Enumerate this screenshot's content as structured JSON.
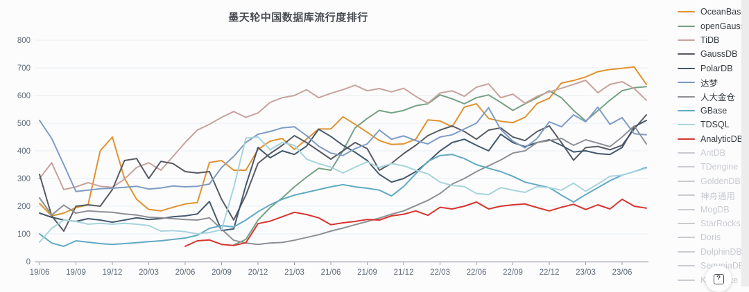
{
  "chart": {
    "title": "墨天轮中国数据库流行度排行",
    "help_icon_glyph": "?"
  },
  "chart_data": {
    "type": "line",
    "title": "墨天轮中国数据库流行度排行",
    "xlabel": "",
    "ylabel": "",
    "ylim": [
      0,
      800
    ],
    "y_ticks": [
      0,
      100,
      200,
      300,
      400,
      500,
      600,
      700,
      800
    ],
    "grid": "horizontal",
    "legend_position": "right",
    "x_unit": "month",
    "tick_every_n_points": 3,
    "x_tick_labels": [
      "19/06",
      "19/09",
      "19/12",
      "20/03",
      "20/06",
      "20/09",
      "20/12",
      "21/03",
      "21/06",
      "21/09",
      "21/12",
      "22/03",
      "22/06",
      "22/09",
      "22/12",
      "23/03",
      "23/06"
    ],
    "series": [
      {
        "name": "OceanBase",
        "color": "#e0922f",
        "start": 0,
        "values": [
          210,
          165,
          175,
          195,
          205,
          400,
          450,
          300,
          225,
          188,
          183,
          196,
          208,
          213,
          358,
          365,
          330,
          330,
          405,
          435,
          445,
          405,
          442,
          479,
          479,
          523,
          496,
          467,
          437,
          423,
          425,
          442,
          512,
          508,
          487,
          558,
          570,
          517,
          507,
          502,
          521,
          571,
          590,
          645,
          654,
          667,
          686,
          694,
          698,
          703,
          640
        ]
      },
      {
        "name": "openGauss",
        "color": "#74a184",
        "start": 16,
        "values": [
          60,
          80,
          150,
          195,
          230,
          270,
          305,
          337,
          330,
          400,
          483,
          517,
          546,
          537,
          546,
          563,
          570,
          602,
          588,
          570,
          592,
          602,
          575,
          546,
          570,
          592,
          617,
          592,
          546,
          508,
          545,
          583,
          617,
          628,
          632
        ]
      },
      {
        "name": "TiDB",
        "color": "#c7a29c",
        "start": 0,
        "values": [
          300,
          357,
          260,
          270,
          285,
          272,
          268,
          298,
          340,
          357,
          330,
          380,
          430,
          475,
          496,
          521,
          542,
          521,
          537,
          575,
          592,
          600,
          621,
          592,
          608,
          621,
          637,
          617,
          625,
          613,
          626,
          597,
          572,
          609,
          617,
          597,
          630,
          642,
          592,
          605,
          572,
          597,
          613,
          626,
          640,
          655,
          610,
          640,
          650,
          625,
          583
        ]
      },
      {
        "name": "GaussDB",
        "color": "#565a61",
        "start": 0,
        "values": [
          315,
          165,
          110,
          200,
          205,
          200,
          260,
          365,
          372,
          300,
          362,
          354,
          325,
          320,
          325,
          225,
          150,
          240,
          355,
          390,
          420,
          455,
          430,
          400,
          370,
          400,
          430,
          408,
          330,
          355,
          390,
          420,
          455,
          475,
          490,
          470,
          442,
          475,
          483,
          450,
          437,
          470,
          490,
          430,
          366,
          412,
          416,
          404,
          420,
          479,
          530
        ]
      },
      {
        "name": "PolarDB",
        "color": "#42586e",
        "start": 0,
        "values": [
          175,
          160,
          150,
          145,
          155,
          150,
          142,
          150,
          158,
          152,
          155,
          162,
          165,
          172,
          217,
          112,
          118,
          275,
          412,
          375,
          400,
          387,
          417,
          478,
          452,
          420,
          395,
          365,
          315,
          287,
          300,
          325,
          360,
          400,
          430,
          442,
          420,
          400,
          460,
          430,
          415,
          430,
          440,
          420,
          396,
          400,
          390,
          387,
          412,
          487,
          510
        ]
      },
      {
        "name": "达梦",
        "color": "#7d9bc4",
        "start": 0,
        "values": [
          510,
          445,
          350,
          253,
          258,
          263,
          265,
          268,
          272,
          262,
          266,
          273,
          270,
          272,
          280,
          340,
          380,
          430,
          460,
          470,
          483,
          487,
          455,
          417,
          392,
          383,
          408,
          425,
          475,
          442,
          454,
          437,
          425,
          450,
          458,
          479,
          500,
          556,
          477,
          435,
          411,
          445,
          505,
          487,
          530,
          505,
          558,
          496,
          520,
          462,
          458
        ]
      },
      {
        "name": "人大金仓",
        "color": "#8c8f94",
        "start": 0,
        "values": [
          230,
          168,
          204,
          175,
          183,
          180,
          178,
          172,
          168,
          160,
          158,
          155,
          152,
          150,
          158,
          117,
          77,
          67,
          62,
          67,
          69,
          77,
          87,
          97,
          110,
          121,
          133,
          145,
          157,
          171,
          183,
          202,
          221,
          246,
          280,
          300,
          325,
          346,
          367,
          392,
          400,
          430,
          437,
          445,
          420,
          440,
          428,
          415,
          450,
          490,
          425
        ]
      },
      {
        "name": "GBase",
        "color": "#62a9c3",
        "start": 0,
        "values": [
          100,
          67,
          55,
          75,
          70,
          65,
          62,
          65,
          68,
          72,
          75,
          80,
          85,
          95,
          120,
          130,
          125,
          150,
          180,
          205,
          225,
          240,
          250,
          260,
          270,
          278,
          270,
          265,
          258,
          237,
          271,
          317,
          362,
          383,
          387,
          372,
          350,
          337,
          325,
          308,
          287,
          277,
          267,
          240,
          215,
          242,
          267,
          292,
          312,
          325,
          340
        ]
      },
      {
        "name": "TDSQL",
        "color": "#a6d4dd",
        "start": 0,
        "values": [
          70,
          120,
          150,
          145,
          135,
          138,
          135,
          138,
          135,
          130,
          110,
          112,
          108,
          100,
          105,
          115,
          267,
          446,
          450,
          404,
          430,
          420,
          370,
          354,
          341,
          320,
          341,
          360,
          340,
          354,
          346,
          330,
          317,
          287,
          275,
          271,
          246,
          242,
          267,
          258,
          250,
          271,
          267,
          258,
          283,
          254,
          280,
          308,
          312,
          325,
          337
        ]
      },
      {
        "name": "AnalyticDB",
        "color": "#d7342e",
        "start": 12,
        "values": [
          55,
          75,
          78,
          62,
          58,
          68,
          137,
          146,
          162,
          178,
          170,
          158,
          133,
          140,
          145,
          152,
          150,
          165,
          171,
          183,
          167,
          196,
          190,
          200,
          215,
          190,
          200,
          205,
          208,
          195,
          183,
          196,
          207,
          188,
          205,
          190,
          225,
          200,
          193
        ]
      }
    ],
    "disabled_series": [
      "AntDB",
      "TDengine",
      "GoldenDB",
      "神舟通用",
      "MogDB",
      "StarRocks",
      "Doris",
      "DolphinDB",
      "SequoiaDB",
      "Kyligence"
    ],
    "disabled_color": "#c8cbd0"
  }
}
